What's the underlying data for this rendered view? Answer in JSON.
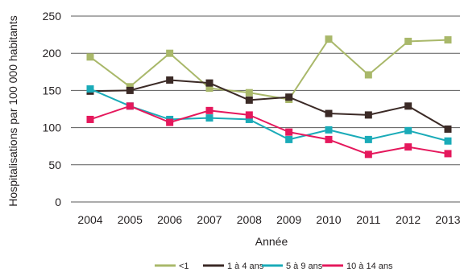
{
  "chart_data": {
    "type": "line",
    "xlabel": "Année",
    "ylabel": "Hospitalisations par 100 000 habitants",
    "x": [
      "2004",
      "2005",
      "2006",
      "2007",
      "2008",
      "2009",
      "2010",
      "2011",
      "2012",
      "2013"
    ],
    "ylim": [
      0,
      250
    ],
    "yticks": [
      0,
      50,
      100,
      150,
      200,
      250
    ],
    "grid": true,
    "legend_position": "bottom",
    "series": [
      {
        "name": "<1",
        "color": "#a9b86a",
        "values": [
          195,
          155,
          200,
          153,
          147,
          138,
          219,
          171,
          216,
          218
        ]
      },
      {
        "name": "1 à 4 ans",
        "color": "#3b2a26",
        "values": [
          149,
          150,
          164,
          160,
          137,
          141,
          119,
          117,
          129,
          98
        ]
      },
      {
        "name": "5 à 9 ans",
        "color": "#1aabb8",
        "values": [
          152,
          129,
          111,
          113,
          111,
          84,
          97,
          84,
          96,
          82
        ]
      },
      {
        "name": "10 à 14 ans",
        "color": "#e5185c",
        "values": [
          111,
          129,
          107,
          123,
          117,
          94,
          84,
          64,
          74,
          65
        ]
      }
    ]
  }
}
